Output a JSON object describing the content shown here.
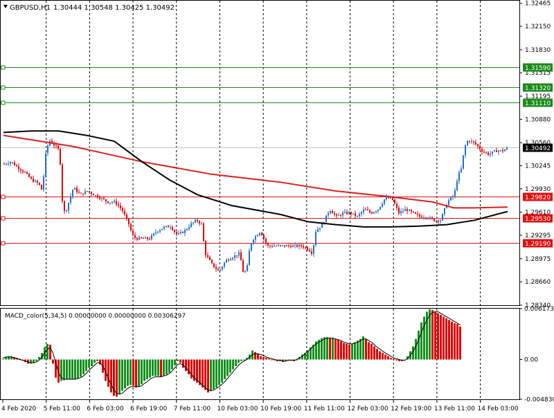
{
  "header": {
    "symbol_label": "GBPUSD,H1",
    "ohlc_label": "1.30444 1.30548 1.30425 1.30492"
  },
  "indicator": {
    "label": "MACD_color(5,34,5) 0.00000000 0.00000000 0.00306297"
  },
  "colors": {
    "bull": "#14911e",
    "bear": "#e00000",
    "candle_up": "#1e70c8",
    "ma_slow": "#dc1e1e",
    "ma_fast": "#000000",
    "level_green": "#1a8a1a",
    "level_red": "#e01010",
    "grid": "#000000"
  },
  "chart_data": [
    {
      "type": "candlestick",
      "symbol": "GBPUSD",
      "timeframe": "H1",
      "ylim": [
        1.2834,
        1.325
      ],
      "y_ticks": [
        "1.32465",
        "1.32150",
        "1.31830",
        "1.31515",
        "1.31195",
        "1.30880",
        "1.30560",
        "1.30245",
        "1.29930",
        "1.29610",
        "1.29295",
        "1.28975",
        "1.28660",
        "1.28340"
      ],
      "x_ticks": [
        "4 Feb 2020",
        "5 Feb 11:00",
        "6 Feb 03:00",
        "6 Feb 19:00",
        "7 Feb 11:00",
        "10 Feb 03:00",
        "10 Feb 19:00",
        "11 Feb 11:00",
        "12 Feb 03:00",
        "12 Feb 19:00",
        "13 Feb 11:00",
        "14 Feb 03:00"
      ],
      "price_labels": [
        {
          "text": "1.31590",
          "value": 1.3159,
          "color": "green"
        },
        {
          "text": "1.31320",
          "value": 1.3132,
          "color": "green"
        },
        {
          "text": "1.31110",
          "value": 1.3111,
          "color": "green"
        },
        {
          "text": "1.30492",
          "value": 1.30492,
          "color": "current"
        },
        {
          "text": "1.29820",
          "value": 1.2982,
          "color": "red"
        },
        {
          "text": "1.29530",
          "value": 1.2953,
          "color": "red"
        },
        {
          "text": "1.29190",
          "value": 1.2919,
          "color": "red"
        }
      ],
      "close_path": [
        [
          0,
          1.3027
        ],
        [
          10,
          1.303
        ],
        [
          20,
          1.3022
        ],
        [
          30,
          1.3015
        ],
        [
          40,
          1.3005
        ],
        [
          50,
          1.3
        ],
        [
          55,
          1.299
        ],
        [
          60,
          1.304
        ],
        [
          65,
          1.306
        ],
        [
          70,
          1.3055
        ],
        [
          80,
          1.3045
        ],
        [
          85,
          1.296
        ],
        [
          90,
          1.2965
        ],
        [
          100,
          1.2995
        ],
        [
          110,
          1.2985
        ],
        [
          120,
          1.299
        ],
        [
          130,
          1.2985
        ],
        [
          140,
          1.298
        ],
        [
          150,
          1.2975
        ],
        [
          160,
          1.2975
        ],
        [
          170,
          1.2965
        ],
        [
          180,
          1.2945
        ],
        [
          185,
          1.293
        ],
        [
          190,
          1.2925
        ],
        [
          200,
          1.2925
        ],
        [
          210,
          1.2925
        ],
        [
          220,
          1.2935
        ],
        [
          230,
          1.294
        ],
        [
          240,
          1.2942
        ],
        [
          250,
          1.293
        ],
        [
          260,
          1.2935
        ],
        [
          270,
          1.2945
        ],
        [
          278,
          1.295
        ],
        [
          285,
          1.2945
        ],
        [
          290,
          1.2905
        ],
        [
          300,
          1.289
        ],
        [
          310,
          1.288
        ],
        [
          320,
          1.2895
        ],
        [
          330,
          1.29
        ],
        [
          340,
          1.2905
        ],
        [
          345,
          1.288
        ],
        [
          350,
          1.288
        ],
        [
          355,
          1.2915
        ],
        [
          360,
          1.2925
        ],
        [
          370,
          1.2935
        ],
        [
          380,
          1.2915
        ],
        [
          390,
          1.2915
        ],
        [
          400,
          1.2915
        ],
        [
          410,
          1.2915
        ],
        [
          420,
          1.2915
        ],
        [
          430,
          1.2915
        ],
        [
          440,
          1.291
        ],
        [
          445,
          1.2905
        ],
        [
          450,
          1.2935
        ],
        [
          460,
          1.2945
        ],
        [
          470,
          1.2965
        ],
        [
          480,
          1.2955
        ],
        [
          490,
          1.296
        ],
        [
          500,
          1.296
        ],
        [
          510,
          1.2955
        ],
        [
          520,
          1.2965
        ],
        [
          530,
          1.296
        ],
        [
          540,
          1.2965
        ],
        [
          550,
          1.298
        ],
        [
          560,
          1.298
        ],
        [
          570,
          1.296
        ],
        [
          580,
          1.2965
        ],
        [
          590,
          1.296
        ],
        [
          600,
          1.2955
        ],
        [
          610,
          1.2955
        ],
        [
          620,
          1.295
        ],
        [
          630,
          1.295
        ],
        [
          640,
          1.2975
        ],
        [
          650,
          1.2985
        ],
        [
          655,
          1.301
        ],
        [
          660,
          1.302
        ],
        [
          665,
          1.305
        ],
        [
          670,
          1.306
        ],
        [
          680,
          1.3055
        ],
        [
          690,
          1.3045
        ],
        [
          700,
          1.304
        ],
        [
          710,
          1.3045
        ],
        [
          720,
          1.3045
        ],
        [
          728,
          1.3049
        ]
      ],
      "series": [
        {
          "name": "",
          "color": "ma_slow",
          "points": [
            [
              0,
              1.3066
            ],
            [
              100,
              1.3051
            ],
            [
              200,
              1.303
            ],
            [
              300,
              1.3013
            ],
            [
              400,
              1.3002
            ],
            [
              480,
              1.299
            ],
            [
              560,
              1.2982
            ],
            [
              620,
              1.2975
            ],
            [
              650,
              1.2967
            ],
            [
              680,
              1.2967
            ],
            [
              728,
              1.2968
            ]
          ]
        },
        {
          "name": "",
          "color": "ma_fast",
          "points": [
            [
              0,
              1.307
            ],
            [
              40,
              1.3072
            ],
            [
              80,
              1.3072
            ],
            [
              120,
              1.3066
            ],
            [
              160,
              1.3058
            ],
            [
              200,
              1.303
            ],
            [
              240,
              1.3005
            ],
            [
              280,
              1.2985
            ],
            [
              330,
              1.297
            ],
            [
              400,
              1.2958
            ],
            [
              440,
              1.2948
            ],
            [
              480,
              1.2944
            ],
            [
              520,
              1.2941
            ],
            [
              560,
              1.2941
            ],
            [
              600,
              1.2942
            ],
            [
              640,
              1.2944
            ],
            [
              680,
              1.295
            ],
            [
              728,
              1.2962
            ]
          ]
        }
      ]
    },
    {
      "type": "bar",
      "title": "MACD_color(5,34,5)",
      "ylim": [
        -0.00483,
        0.00617
      ],
      "y_ticks": [
        "0.0061732",
        "0.00",
        "-0.004830"
      ],
      "values": [
        0.0001,
        0.0003,
        0.0004,
        0.0004,
        0.0003,
        0.0002,
        0.0001,
        0.0,
        -0.0003,
        -0.0005,
        -0.0005,
        -0.0004,
        -0.0002,
        0.0003,
        0.0008,
        0.0015,
        0.0019,
        0.0018,
        -0.0005,
        -0.0022,
        -0.0028,
        -0.0026,
        -0.0025,
        -0.0024,
        -0.0024,
        -0.0024,
        -0.0024,
        -0.0023,
        -0.0021,
        -0.0018,
        -0.0014,
        -0.001,
        -0.0008,
        -0.0004,
        -0.0002,
        -0.0006,
        -0.0016,
        -0.0026,
        -0.0033,
        -0.004,
        -0.0044,
        -0.0045,
        -0.0042,
        -0.0038,
        -0.0035,
        -0.0032,
        -0.0031,
        -0.0032,
        -0.0034,
        -0.0033,
        -0.003,
        -0.0026,
        -0.0024,
        -0.0022,
        -0.002,
        -0.002,
        -0.002,
        -0.0021,
        -0.002,
        -0.0018,
        -0.0016,
        -0.0012,
        -0.0007,
        -0.0002,
        -0.0004,
        -0.001,
        -0.0014,
        -0.0018,
        -0.0023,
        -0.0026,
        -0.0028,
        -0.0031,
        -0.0034,
        -0.0037,
        -0.004,
        -0.0038,
        -0.0036,
        -0.0034,
        -0.0031,
        -0.0028,
        -0.0024,
        -0.002,
        -0.0016,
        -0.0012,
        -0.0008,
        -0.0004,
        -0.0002,
        -0.0001,
        0.0002,
        0.0006,
        0.0011,
        0.0009,
        0.0007,
        0.0004,
        0.0003,
        0.0002,
        0.0001,
        0.0,
        -0.0001,
        -0.0002,
        -0.0002,
        -0.0003,
        -0.0002,
        -0.0001,
        0.0,
        -0.0002,
        -0.0001,
        0.0003,
        0.0006,
        0.0008,
        0.0011,
        0.0015,
        0.0018,
        0.0022,
        0.0024,
        0.0026,
        0.0027,
        0.0027,
        0.0026,
        0.0026,
        0.0025,
        0.0024,
        0.0022,
        0.002,
        0.0019,
        0.0018,
        0.0019,
        0.0021,
        0.0023,
        0.0025,
        0.0028,
        0.0025,
        0.0021,
        0.0019,
        0.0016,
        0.0013,
        0.001,
        0.0008,
        0.0006,
        0.0004,
        0.0002,
        0.0001,
        -0.0001,
        -0.0002,
        -0.0002,
        0.0,
        0.0004,
        0.001,
        0.0016,
        0.0025,
        0.0035,
        0.0045,
        0.0052,
        0.0058,
        0.0061,
        0.006,
        0.0058,
        0.0056,
        0.0054,
        0.0052,
        0.005,
        0.0048,
        0.0046,
        0.0044,
        0.0043,
        0.004
      ],
      "signal": [
        0.0002,
        0.0003,
        0.0003,
        0.0003,
        0.0002,
        0.0001,
        0.0,
        -0.0001,
        -0.0002,
        -0.0003,
        -0.0004,
        -0.0004,
        -0.0003,
        -0.0001,
        0.0003,
        0.0008,
        0.0013,
        0.0014,
        0.0008,
        -0.0004,
        -0.0016,
        -0.0022,
        -0.0024,
        -0.0024,
        -0.0024,
        -0.0024,
        -0.0024,
        -0.0023,
        -0.0022,
        -0.002,
        -0.0017,
        -0.0013,
        -0.001,
        -0.0007,
        -0.0004,
        -0.0004,
        -0.0008,
        -0.0015,
        -0.0023,
        -0.003,
        -0.0037,
        -0.0041,
        -0.0042,
        -0.0041,
        -0.0038,
        -0.0035,
        -0.0033,
        -0.0033,
        -0.0033,
        -0.0033,
        -0.0032,
        -0.0029,
        -0.0027,
        -0.0024,
        -0.0022,
        -0.0021,
        -0.0021,
        -0.0021,
        -0.002,
        -0.0019,
        -0.0017,
        -0.0014,
        -0.001,
        -0.0006,
        -0.0005,
        -0.0007,
        -0.001,
        -0.0014,
        -0.0018,
        -0.0022,
        -0.0025,
        -0.0028,
        -0.0031,
        -0.0034,
        -0.0037,
        -0.0038,
        -0.0037,
        -0.0035,
        -0.0033,
        -0.003,
        -0.0027,
        -0.0023,
        -0.0019,
        -0.0015,
        -0.0011,
        -0.0007,
        -0.0004,
        -0.0002,
        0.0,
        0.0003,
        0.0006,
        0.0007,
        0.0007,
        0.0006,
        0.0005,
        0.0003,
        0.0002,
        0.0001,
        0.0,
        -0.0001,
        -0.0001,
        -0.0002,
        -0.0002,
        -0.0001,
        -0.0001,
        -0.0001,
        0.0,
        0.0002,
        0.0004,
        0.0007,
        0.001,
        0.0013,
        0.0016,
        0.0019,
        0.0021,
        0.0023,
        0.0025,
        0.0026,
        0.0026,
        0.0026,
        0.0025,
        0.0024,
        0.0023,
        0.0021,
        0.002,
        0.0019,
        0.0019,
        0.002,
        0.0021,
        0.0023,
        0.0025,
        0.0025,
        0.0023,
        0.0021,
        0.0018,
        0.0015,
        0.0013,
        0.001,
        0.0008,
        0.0006,
        0.0004,
        0.0002,
        0.0001,
        0.0,
        -0.0001,
        -0.0001,
        0.0001,
        0.0005,
        0.001,
        0.0016,
        0.0024,
        0.0033,
        0.0041,
        0.0048,
        0.0054,
        0.0057,
        0.0058,
        0.0058,
        0.0056,
        0.0054,
        0.0052,
        0.005,
        0.0048,
        0.0046,
        0.0044,
        0.0042
      ]
    }
  ]
}
